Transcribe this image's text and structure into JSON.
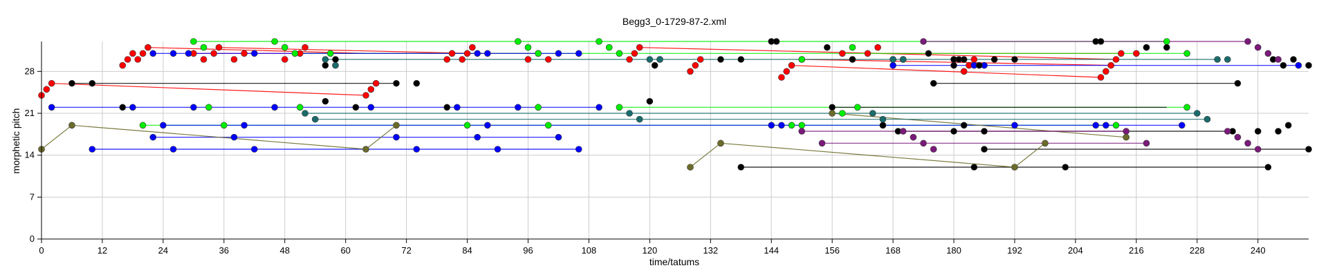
{
  "chart_data": {
    "type": "scatter",
    "title": "Begg3_0-1729-87-2.xml",
    "xlabel": "time/tatums",
    "ylabel": "morphetic pitch",
    "xlim": [
      0,
      250
    ],
    "ylim": [
      0,
      33
    ],
    "xticks": [
      0,
      12,
      24,
      36,
      48,
      60,
      72,
      84,
      96,
      108,
      120,
      132,
      144,
      156,
      168,
      180,
      192,
      204,
      216,
      228,
      240
    ],
    "yticks": [
      0,
      7,
      14,
      21,
      28
    ],
    "grid": true,
    "colors": {
      "red": "#ff0000",
      "green": "#00ee00",
      "blue": "#0000ff",
      "black": "#000000",
      "olive": "#6b6b2a",
      "teal": "#1a6b6b",
      "purple": "#7a1a7a",
      "gray": "#777777"
    },
    "series": [
      {
        "color": "red",
        "points": [
          [
            0,
            24
          ],
          [
            1,
            25
          ],
          [
            2,
            26
          ],
          [
            64,
            24
          ],
          [
            65,
            25
          ],
          [
            66,
            26
          ],
          [
            16,
            29
          ],
          [
            17,
            30
          ],
          [
            18,
            31
          ],
          [
            19,
            30
          ],
          [
            20,
            31
          ],
          [
            21,
            32
          ],
          [
            30,
            31
          ],
          [
            32,
            30
          ],
          [
            34,
            31
          ],
          [
            35,
            32
          ],
          [
            38,
            30
          ],
          [
            40,
            31
          ],
          [
            48,
            30
          ],
          [
            51,
            31
          ],
          [
            52,
            32
          ],
          [
            80,
            30
          ],
          [
            81,
            31
          ],
          [
            83,
            30
          ],
          [
            84,
            31
          ],
          [
            85,
            32
          ],
          [
            96,
            30
          ],
          [
            98,
            31
          ],
          [
            100,
            30
          ],
          [
            116,
            30
          ],
          [
            117,
            31
          ],
          [
            118,
            32
          ],
          [
            128,
            28
          ],
          [
            129,
            29
          ],
          [
            130,
            30
          ],
          [
            146,
            27
          ],
          [
            147,
            28
          ],
          [
            148,
            29
          ],
          [
            150,
            30
          ],
          [
            158,
            31
          ],
          [
            160,
            30
          ],
          [
            163,
            31
          ],
          [
            165,
            32
          ],
          [
            182,
            28
          ],
          [
            183,
            29
          ],
          [
            184,
            30
          ],
          [
            209,
            27
          ],
          [
            210,
            28
          ],
          [
            211,
            29
          ],
          [
            212,
            30
          ],
          [
            213,
            31
          ],
          [
            216,
            31
          ],
          [
            218,
            32
          ]
        ],
        "connections": [
          [
            2,
            26,
            64,
            24
          ],
          [
            21,
            32,
            64,
            31
          ],
          [
            35,
            32,
            85,
            31
          ],
          [
            30,
            31,
            98,
            31
          ],
          [
            118,
            32,
            212,
            30
          ],
          [
            148,
            29,
            209,
            27
          ],
          [
            150,
            30,
            212,
            29
          ],
          [
            163,
            31,
            213,
            31
          ]
        ]
      },
      {
        "color": "green",
        "points": [
          [
            30,
            33
          ],
          [
            32,
            32
          ],
          [
            46,
            33
          ],
          [
            48,
            32
          ],
          [
            50,
            31
          ],
          [
            57,
            31
          ],
          [
            94,
            33
          ],
          [
            96,
            32
          ],
          [
            98,
            31
          ],
          [
            110,
            33
          ],
          [
            112,
            32
          ],
          [
            114,
            31
          ],
          [
            20,
            19
          ],
          [
            36,
            19
          ],
          [
            84,
            19
          ],
          [
            100,
            19
          ],
          [
            148,
            19
          ],
          [
            150,
            19
          ],
          [
            212,
            19
          ],
          [
            114,
            22
          ],
          [
            33,
            22
          ],
          [
            51,
            22
          ],
          [
            98,
            22
          ],
          [
            161,
            22
          ],
          [
            226,
            22
          ],
          [
            158,
            21
          ],
          [
            150,
            30
          ],
          [
            160,
            32
          ],
          [
            180,
            30
          ],
          [
            222,
            33
          ],
          [
            226,
            31
          ]
        ],
        "connections": [
          [
            30,
            33,
            222,
            33
          ],
          [
            20,
            19,
            212,
            19
          ],
          [
            114,
            22,
            226,
            22
          ],
          [
            50,
            31,
            226,
            31
          ]
        ]
      },
      {
        "color": "blue",
        "points": [
          [
            2,
            22
          ],
          [
            18,
            22
          ],
          [
            30,
            22
          ],
          [
            46,
            22
          ],
          [
            65,
            22
          ],
          [
            82,
            22
          ],
          [
            94,
            22
          ],
          [
            110,
            22
          ],
          [
            22,
            17
          ],
          [
            38,
            17
          ],
          [
            70,
            17
          ],
          [
            86,
            17
          ],
          [
            102,
            17
          ],
          [
            10,
            15
          ],
          [
            26,
            15
          ],
          [
            42,
            15
          ],
          [
            74,
            15
          ],
          [
            90,
            15
          ],
          [
            106,
            15
          ],
          [
            24,
            19
          ],
          [
            40,
            19
          ],
          [
            88,
            19
          ],
          [
            144,
            19
          ],
          [
            146,
            19
          ],
          [
            166,
            19
          ],
          [
            192,
            19
          ],
          [
            208,
            19
          ],
          [
            210,
            19
          ],
          [
            225,
            19
          ],
          [
            22,
            31
          ],
          [
            26,
            31
          ],
          [
            29,
            31
          ],
          [
            42,
            31
          ],
          [
            86,
            31
          ],
          [
            88,
            31
          ],
          [
            102,
            31
          ],
          [
            106,
            31
          ],
          [
            168,
            29
          ],
          [
            184,
            29
          ],
          [
            186,
            29
          ],
          [
            248,
            29
          ]
        ],
        "connections": [
          [
            2,
            22,
            110,
            22
          ],
          [
            22,
            17,
            102,
            17
          ],
          [
            10,
            15,
            106,
            15
          ],
          [
            24,
            19,
            225,
            19
          ],
          [
            22,
            31,
            106,
            31
          ],
          [
            168,
            29,
            248,
            29
          ]
        ]
      },
      {
        "color": "black",
        "points": [
          [
            6,
            26
          ],
          [
            10,
            26
          ],
          [
            70,
            26
          ],
          [
            74,
            26
          ],
          [
            16,
            22
          ],
          [
            56,
            23
          ],
          [
            80,
            22
          ],
          [
            120,
            23
          ],
          [
            138,
            30
          ],
          [
            134,
            30
          ],
          [
            144,
            33
          ],
          [
            145,
            33
          ],
          [
            155,
            32
          ],
          [
            160,
            30
          ],
          [
            168,
            30
          ],
          [
            170,
            30
          ],
          [
            175,
            31
          ],
          [
            180,
            30
          ],
          [
            181,
            30
          ],
          [
            182,
            30
          ],
          [
            188,
            30
          ],
          [
            192,
            30
          ],
          [
            180,
            29
          ],
          [
            185,
            29
          ],
          [
            176,
            26
          ],
          [
            236,
            26
          ],
          [
            156,
            22
          ],
          [
            166,
            19
          ],
          [
            169,
            18
          ],
          [
            180,
            18
          ],
          [
            182,
            19
          ],
          [
            208,
            33
          ],
          [
            209,
            33
          ],
          [
            218,
            32
          ],
          [
            222,
            32
          ],
          [
            235,
            18
          ],
          [
            240,
            18
          ],
          [
            244,
            18
          ],
          [
            246,
            19
          ],
          [
            243,
            30
          ],
          [
            245,
            29
          ],
          [
            247,
            30
          ],
          [
            250,
            29
          ],
          [
            138,
            12
          ],
          [
            184,
            12
          ],
          [
            202,
            12
          ],
          [
            242,
            12
          ],
          [
            186,
            15
          ],
          [
            250,
            15
          ],
          [
            121,
            29
          ],
          [
            122,
            30
          ],
          [
            56,
            29
          ],
          [
            58,
            30
          ],
          [
            62,
            22
          ],
          [
            186,
            18
          ]
        ],
        "connections": [
          [
            6,
            26,
            70,
            26
          ],
          [
            176,
            26,
            236,
            26
          ],
          [
            138,
            12,
            242,
            12
          ],
          [
            186,
            15,
            250,
            15
          ],
          [
            156,
            22,
            222,
            22
          ],
          [
            169,
            18,
            235,
            18
          ]
        ]
      },
      {
        "color": "olive",
        "points": [
          [
            0,
            15
          ],
          [
            6,
            19
          ],
          [
            64,
            15
          ],
          [
            70,
            19
          ],
          [
            128,
            12
          ],
          [
            134,
            16
          ],
          [
            192,
            12
          ],
          [
            198,
            16
          ],
          [
            156,
            21
          ],
          [
            214,
            17
          ]
        ],
        "connections": [
          [
            0,
            15,
            6,
            19
          ],
          [
            6,
            19,
            64,
            15
          ],
          [
            64,
            15,
            70,
            19
          ],
          [
            128,
            12,
            134,
            16
          ],
          [
            134,
            16,
            192,
            12
          ],
          [
            192,
            12,
            198,
            16
          ],
          [
            156,
            21,
            214,
            17
          ]
        ]
      },
      {
        "color": "teal",
        "points": [
          [
            52,
            21
          ],
          [
            54,
            20
          ],
          [
            56,
            30
          ],
          [
            58,
            29
          ],
          [
            116,
            21
          ],
          [
            118,
            20
          ],
          [
            120,
            30
          ],
          [
            122,
            30
          ],
          [
            164,
            21
          ],
          [
            166,
            20
          ],
          [
            168,
            30
          ],
          [
            170,
            30
          ],
          [
            228,
            21
          ],
          [
            230,
            20
          ],
          [
            232,
            30
          ],
          [
            234,
            30
          ]
        ],
        "connections": [
          [
            52,
            21,
            228,
            21
          ],
          [
            54,
            20,
            230,
            20
          ],
          [
            56,
            30,
            232,
            30
          ]
        ]
      },
      {
        "color": "purple",
        "points": [
          [
            150,
            18
          ],
          [
            154,
            16
          ],
          [
            170,
            18
          ],
          [
            172,
            17
          ],
          [
            174,
            16
          ],
          [
            176,
            15
          ],
          [
            214,
            18
          ],
          [
            218,
            16
          ],
          [
            234,
            18
          ],
          [
            236,
            17
          ],
          [
            238,
            16
          ],
          [
            240,
            15
          ],
          [
            174,
            33
          ],
          [
            238,
            33
          ],
          [
            240,
            32
          ],
          [
            242,
            31
          ],
          [
            244,
            30
          ]
        ],
        "connections": [
          [
            150,
            18,
            214,
            18
          ],
          [
            154,
            16,
            218,
            16
          ],
          [
            174,
            33,
            238,
            33
          ]
        ]
      }
    ]
  }
}
